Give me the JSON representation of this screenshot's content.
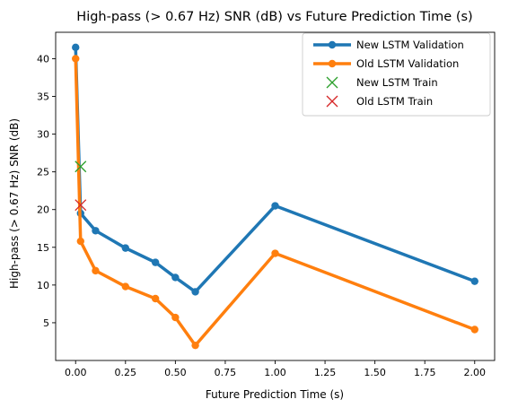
{
  "chart_data": {
    "type": "line",
    "title": "High-pass (> 0.67 Hz) SNR (dB) vs Future Prediction Time (s)",
    "xlabel": "Future Prediction Time (s)",
    "ylabel": "High-pass (> 0.67 Hz) SNR (dB)",
    "xlim": [
      -0.1,
      2.1
    ],
    "ylim": [
      0.0,
      43.5
    ],
    "xticks": [
      0.0,
      0.25,
      0.5,
      0.75,
      1.0,
      1.25,
      1.5,
      1.75,
      2.0
    ],
    "xtick_labels": [
      "0.00",
      "0.25",
      "0.50",
      "0.75",
      "1.00",
      "1.25",
      "1.50",
      "1.75",
      "2.00"
    ],
    "yticks": [
      5,
      10,
      15,
      20,
      25,
      30,
      35,
      40
    ],
    "ytick_labels": [
      "5",
      "10",
      "15",
      "20",
      "25",
      "30",
      "35",
      "40"
    ],
    "grid": false,
    "legend_position": "top-right",
    "series": [
      {
        "name": "New LSTM Validation",
        "color": "#1f77b4",
        "style": "line-marker",
        "x": [
          0.0,
          0.025,
          0.1,
          0.25,
          0.4,
          0.5,
          0.6,
          1.0,
          2.0
        ],
        "y": [
          41.5,
          19.5,
          17.2,
          14.9,
          13.0,
          11.0,
          9.1,
          20.5,
          10.5
        ]
      },
      {
        "name": "Old LSTM Validation",
        "color": "#ff7f0e",
        "style": "line-marker",
        "x": [
          0.0,
          0.025,
          0.1,
          0.25,
          0.4,
          0.5,
          0.6,
          1.0,
          2.0
        ],
        "y": [
          40.0,
          15.8,
          11.9,
          9.8,
          8.2,
          5.7,
          2.0,
          14.2,
          4.1
        ]
      },
      {
        "name": "New LSTM Train",
        "color": "#2ca02c",
        "style": "x-marker",
        "x": [
          0.025
        ],
        "y": [
          25.7
        ]
      },
      {
        "name": "Old LSTM Train",
        "color": "#d62728",
        "style": "x-marker",
        "x": [
          0.025
        ],
        "y": [
          20.6
        ]
      }
    ]
  }
}
